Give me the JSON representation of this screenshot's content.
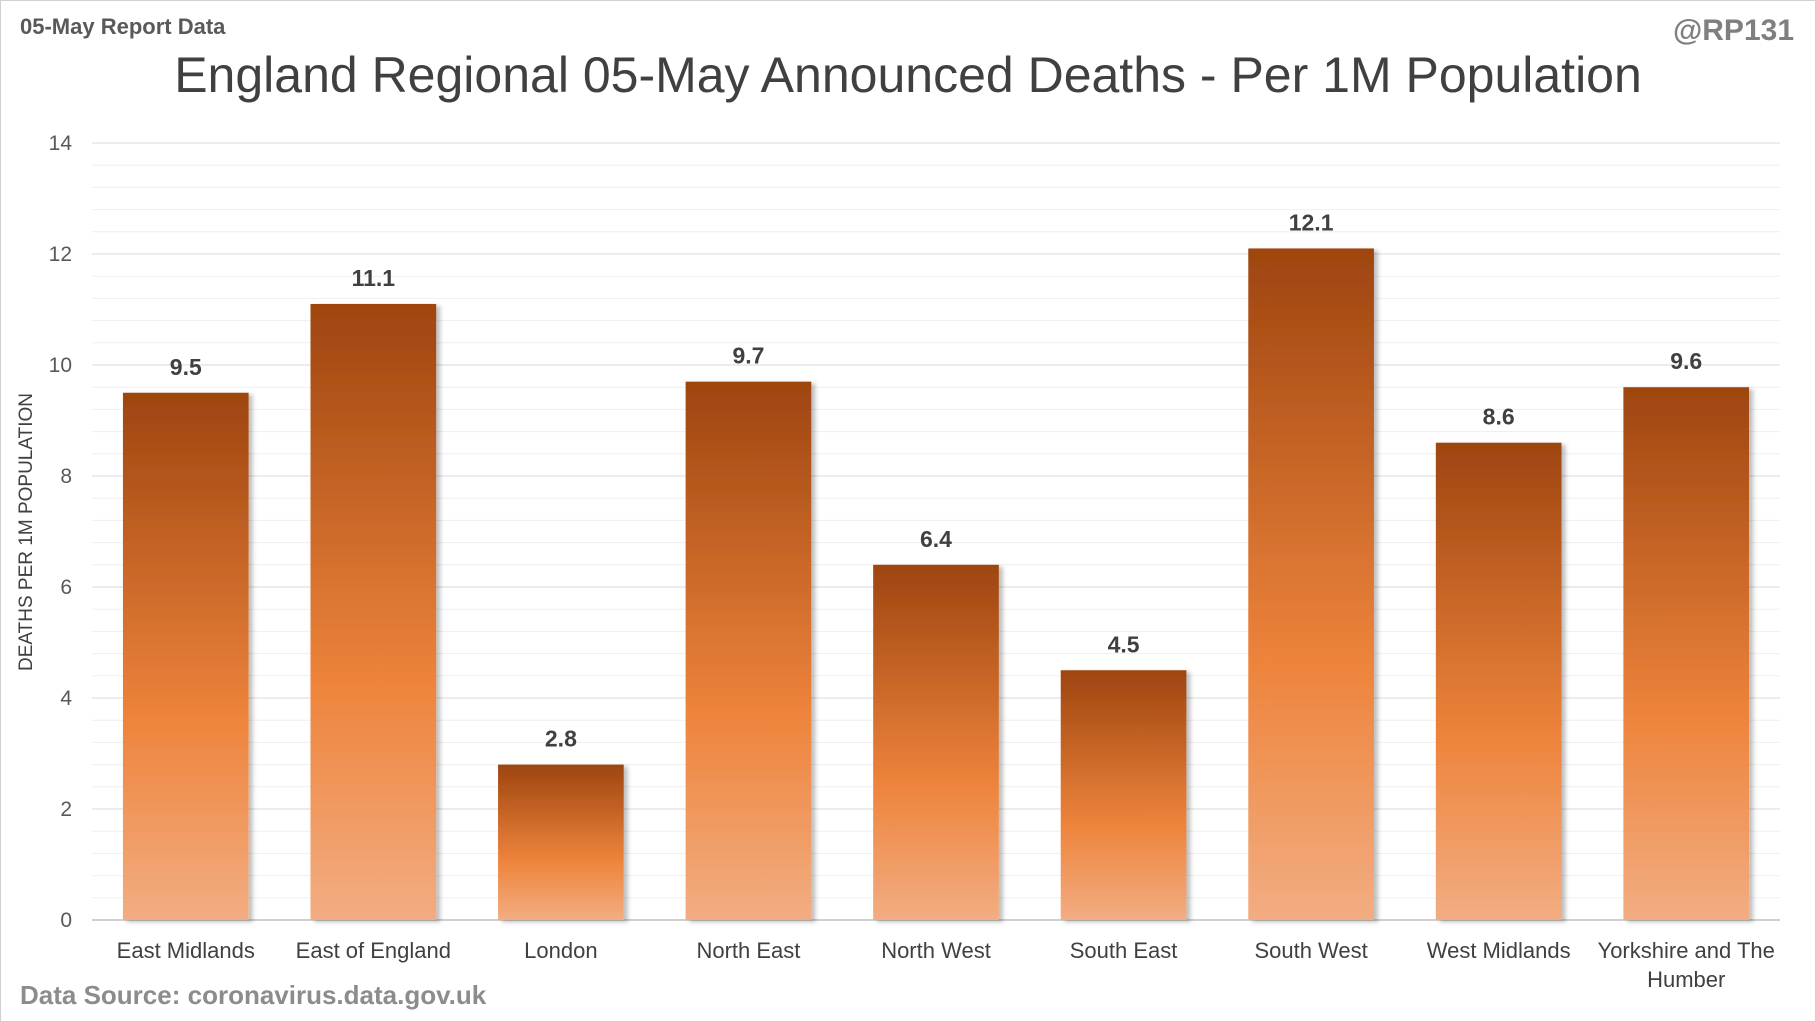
{
  "header": {
    "report_date_label": "05-May Report Data",
    "handle": "@RP131"
  },
  "footer": {
    "source": "Data Source: coronavirus.data.gov.uk"
  },
  "chart_data": {
    "type": "bar",
    "title": "England Regional 05-May Announced Deaths - Per 1M Population",
    "xlabel": "",
    "ylabel": "DEATHS PER 1M POPULATION",
    "ylim": [
      0,
      14
    ],
    "yticks": [
      0,
      2,
      4,
      6,
      8,
      10,
      12,
      14
    ],
    "grid": true,
    "categories": [
      [
        "East Midlands"
      ],
      [
        "East of England"
      ],
      [
        "London"
      ],
      [
        "North East"
      ],
      [
        "North West"
      ],
      [
        "South East"
      ],
      [
        "South West"
      ],
      [
        "West Midlands"
      ],
      [
        "Yorkshire and The",
        "Humber"
      ]
    ],
    "values": [
      9.5,
      11.1,
      2.8,
      9.7,
      6.4,
      4.5,
      12.1,
      8.6,
      9.6
    ],
    "data_labels": [
      "9.5",
      "11.1",
      "2.8",
      "9.7",
      "6.4",
      "4.5",
      "12.1",
      "8.6",
      "9.6"
    ],
    "colors": {
      "bar_top": "#9e4510",
      "bar_mid": "#ee843c",
      "bar_bottom": "#f2ad82",
      "grid_major": "#d9d9d9",
      "grid_minor": "#efefef"
    }
  }
}
